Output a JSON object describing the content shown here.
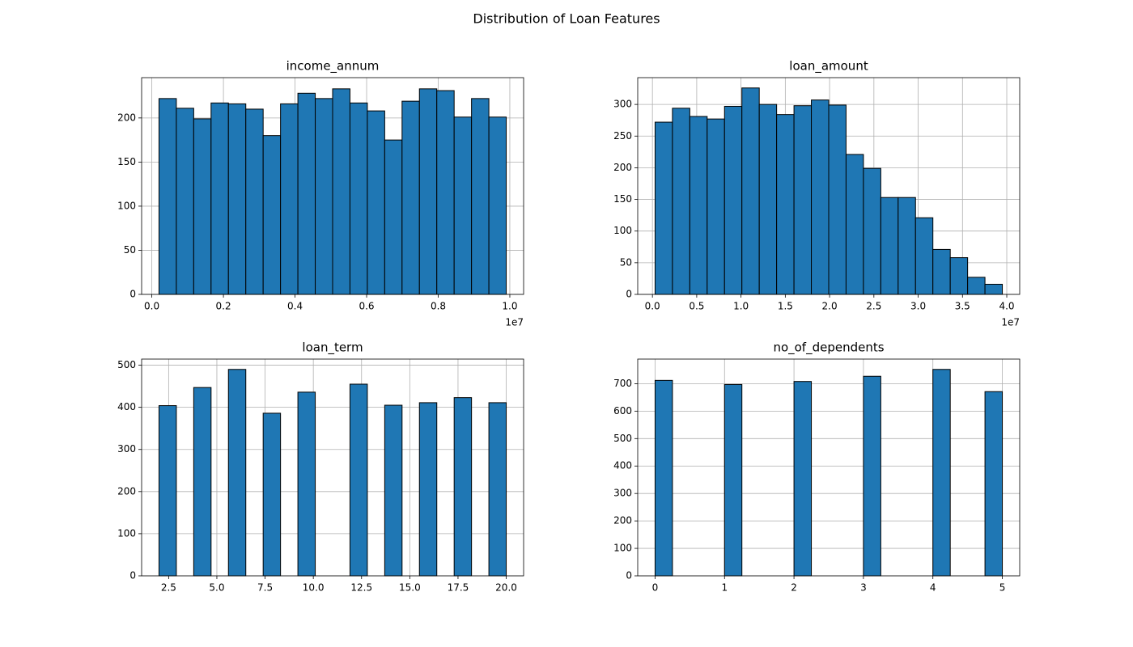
{
  "title": "Distribution of Loan Features",
  "chart_data": [
    {
      "type": "histogram",
      "title": "income_annum",
      "color": "#1f77b4",
      "edgecolor": "#000000",
      "grid": true,
      "bins": [
        200000,
        685000,
        1170000,
        1655000,
        2140000,
        2625000,
        3110000,
        3595000,
        4080000,
        4565000,
        5050000,
        5535000,
        6020000,
        6505000,
        6990000,
        7475000,
        7960000,
        8445000,
        8930000,
        9415000,
        9900000
      ],
      "values": [
        222,
        211,
        199,
        217,
        216,
        210,
        180,
        216,
        228,
        222,
        233,
        217,
        208,
        175,
        219,
        233,
        231,
        201,
        222,
        201
      ],
      "xlim": [
        -285000,
        10385000
      ],
      "ylim": [
        0,
        245.7
      ],
      "xticks": [
        {
          "value": 0,
          "label": "0.0"
        },
        {
          "value": 2000000,
          "label": "0.2"
        },
        {
          "value": 4000000,
          "label": "0.4"
        },
        {
          "value": 6000000,
          "label": "0.6"
        },
        {
          "value": 8000000,
          "label": "0.8"
        },
        {
          "value": 10000000,
          "label": "1.0"
        }
      ],
      "x_offset_label": "1e7",
      "yticks": [
        0,
        50,
        100,
        150,
        200
      ]
    },
    {
      "type": "histogram",
      "title": "loan_amount",
      "color": "#1f77b4",
      "edgecolor": "#000000",
      "grid": true,
      "bins": [
        300000,
        2260000,
        4220000,
        6180000,
        8140000,
        10100000,
        12060000,
        14020000,
        15980000,
        17940000,
        19900000,
        21860000,
        23820000,
        25780000,
        27740000,
        29700000,
        31660000,
        33620000,
        35580000,
        37540000,
        39500000
      ],
      "values": [
        272,
        294,
        281,
        277,
        297,
        326,
        300,
        284,
        298,
        307,
        299,
        221,
        199,
        153,
        153,
        121,
        71,
        58,
        27,
        16
      ],
      "xlim": [
        -1660000,
        41460000
      ],
      "ylim": [
        0,
        342.3
      ],
      "xticks": [
        {
          "value": 0,
          "label": "0.0"
        },
        {
          "value": 5000000,
          "label": "0.5"
        },
        {
          "value": 10000000,
          "label": "1.0"
        },
        {
          "value": 15000000,
          "label": "1.5"
        },
        {
          "value": 20000000,
          "label": "2.0"
        },
        {
          "value": 25000000,
          "label": "2.5"
        },
        {
          "value": 30000000,
          "label": "3.0"
        },
        {
          "value": 35000000,
          "label": "3.5"
        },
        {
          "value": 40000000,
          "label": "4.0"
        }
      ],
      "x_offset_label": "1e7",
      "yticks": [
        0,
        50,
        100,
        150,
        200,
        250,
        300
      ]
    },
    {
      "type": "histogram",
      "title": "loan_term",
      "color": "#1f77b4",
      "edgecolor": "#000000",
      "grid": true,
      "bins": [
        2,
        2.9,
        3.8,
        4.7,
        5.6,
        6.5,
        7.4,
        8.3,
        9.2,
        10.1,
        11,
        11.9,
        12.8,
        13.7,
        14.6,
        15.5,
        16.4,
        17.3,
        18.2,
        19.1,
        20
      ],
      "values": [
        404,
        0,
        447,
        0,
        490,
        0,
        386,
        0,
        436,
        0,
        0,
        455,
        0,
        405,
        0,
        411,
        0,
        423,
        0,
        411
      ],
      "xlim": [
        1.1,
        20.9
      ],
      "ylim": [
        0,
        514.5
      ],
      "xticks": [
        2.5,
        {
          "value": 5,
          "label": "5.0"
        },
        7.5,
        {
          "value": 10,
          "label": "10.0"
        },
        12.5,
        {
          "value": 15,
          "label": "15.0"
        },
        17.5,
        {
          "value": 20,
          "label": "20.0"
        }
      ],
      "yticks": [
        0,
        100,
        200,
        300,
        400,
        500
      ]
    },
    {
      "type": "histogram",
      "title": "no_of_dependents",
      "color": "#1f77b4",
      "edgecolor": "#000000",
      "grid": true,
      "bins": [
        0,
        0.25,
        0.5,
        0.75,
        1,
        1.25,
        1.5,
        1.75,
        2,
        2.25,
        2.5,
        2.75,
        3,
        3.25,
        3.5,
        3.75,
        4,
        4.25,
        4.5,
        4.75,
        5
      ],
      "values": [
        712,
        0,
        0,
        0,
        697,
        0,
        0,
        0,
        708,
        0,
        0,
        0,
        727,
        0,
        0,
        0,
        752,
        0,
        0,
        671
      ],
      "xlim": [
        -0.25,
        5.25
      ],
      "ylim": [
        0,
        789.6
      ],
      "xticks": [
        0,
        1,
        2,
        3,
        4,
        5
      ],
      "yticks": [
        0,
        100,
        200,
        300,
        400,
        500,
        600,
        700
      ]
    }
  ]
}
